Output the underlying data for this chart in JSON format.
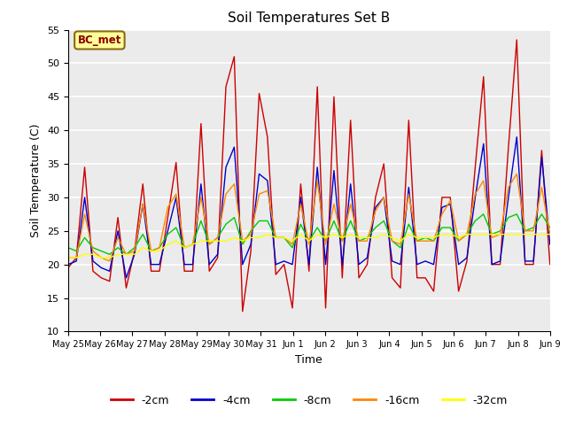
{
  "title": "Soil Temperatures Set B",
  "xlabel": "Time",
  "ylabel": "Soil Temperature (C)",
  "ylim": [
    10,
    55
  ],
  "yticks": [
    10,
    15,
    20,
    25,
    30,
    35,
    40,
    45,
    50,
    55
  ],
  "annotation_text": "BC_met",
  "annotation_bg": "#FFFF99",
  "annotation_border": "#8B6914",
  "annotation_text_color": "#8B0000",
  "fig_bg": "#FFFFFF",
  "plot_bg": "#EBEBEB",
  "grid_color": "#FFFFFF",
  "colors": {
    "-2cm": "#CC0000",
    "-4cm": "#0000CC",
    "-8cm": "#00CC00",
    "-16cm": "#FF8800",
    "-32cm": "#FFFF00"
  },
  "linewidth": 1.0,
  "num_days": 16,
  "xtick_labels": [
    "May 25",
    "May 26",
    "May 27",
    "May 28",
    "May 29",
    "May 30",
    "May 31",
    "Jun 1",
    "Jun 2",
    "Jun 3",
    "Jun 4",
    "Jun 5",
    "Jun 6",
    "Jun 7",
    "Jun 8",
    "Jun 9"
  ],
  "depth_2cm": [
    19.5,
    21.0,
    34.5,
    19.0,
    18.0,
    17.5,
    27.0,
    16.5,
    22.0,
    32.0,
    19.0,
    19.0,
    27.0,
    35.2,
    19.0,
    19.0,
    41.0,
    19.0,
    21.0,
    46.5,
    51.0,
    13.0,
    22.0,
    45.5,
    39.0,
    18.5,
    20.0,
    13.5,
    32.0,
    19.0,
    46.5,
    13.5,
    45.0,
    18.0,
    41.5,
    18.0,
    20.0,
    30.0,
    35.0,
    18.0,
    16.5,
    41.5,
    18.0,
    18.0,
    16.0,
    30.0,
    30.0,
    16.0,
    20.5,
    34.5,
    48.0,
    20.0,
    20.0,
    37.5,
    53.5,
    20.0,
    20.0,
    37.0,
    20.0
  ],
  "depth_4cm": [
    20.0,
    20.5,
    30.0,
    20.5,
    19.5,
    19.0,
    25.0,
    18.0,
    21.5,
    29.0,
    20.0,
    20.0,
    25.0,
    30.0,
    20.0,
    20.0,
    32.0,
    20.0,
    21.5,
    34.5,
    37.5,
    20.0,
    23.0,
    33.5,
    32.5,
    20.0,
    20.5,
    20.0,
    30.0,
    20.0,
    34.5,
    20.0,
    34.0,
    20.0,
    32.0,
    20.0,
    21.0,
    28.5,
    30.0,
    20.5,
    20.0,
    31.5,
    20.0,
    20.5,
    20.0,
    28.5,
    29.0,
    20.0,
    21.0,
    30.0,
    38.0,
    20.0,
    20.5,
    30.0,
    39.0,
    20.5,
    20.5,
    36.0,
    23.0
  ],
  "depth_8cm": [
    22.5,
    22.0,
    24.0,
    22.5,
    22.0,
    21.5,
    22.5,
    21.5,
    22.5,
    24.5,
    22.0,
    22.5,
    24.5,
    25.5,
    22.5,
    23.0,
    26.5,
    23.0,
    24.0,
    26.0,
    27.0,
    23.0,
    25.0,
    26.5,
    26.5,
    24.0,
    24.0,
    22.5,
    26.0,
    23.5,
    25.5,
    23.5,
    26.5,
    23.5,
    26.5,
    23.5,
    24.0,
    25.5,
    26.5,
    23.5,
    22.5,
    26.0,
    23.5,
    24.0,
    23.5,
    25.5,
    25.5,
    23.5,
    24.5,
    26.5,
    27.5,
    24.5,
    25.0,
    27.0,
    27.5,
    25.0,
    25.5,
    27.5,
    25.5
  ],
  "depth_16cm": [
    21.0,
    21.0,
    27.5,
    22.0,
    21.0,
    20.5,
    24.0,
    21.5,
    22.0,
    29.0,
    22.0,
    22.5,
    28.5,
    30.5,
    22.5,
    23.0,
    30.0,
    23.0,
    24.0,
    30.5,
    32.0,
    23.5,
    24.5,
    30.5,
    31.0,
    24.0,
    24.0,
    23.0,
    29.0,
    23.0,
    32.5,
    23.0,
    29.0,
    23.5,
    29.0,
    23.5,
    23.5,
    28.0,
    30.0,
    23.5,
    23.0,
    30.5,
    23.5,
    23.5,
    23.5,
    27.5,
    29.5,
    23.5,
    24.5,
    30.5,
    32.5,
    24.0,
    24.5,
    31.5,
    33.5,
    25.0,
    25.0,
    31.5,
    24.5
  ],
  "depth_32cm": [
    21.0,
    21.0,
    21.5,
    21.5,
    21.0,
    21.0,
    21.5,
    21.5,
    21.5,
    22.5,
    22.0,
    22.0,
    23.0,
    23.5,
    22.5,
    23.0,
    23.5,
    23.5,
    23.5,
    23.5,
    24.0,
    23.5,
    24.0,
    24.0,
    24.5,
    24.0,
    24.0,
    23.5,
    24.5,
    23.5,
    24.5,
    24.0,
    24.5,
    24.0,
    24.5,
    24.0,
    24.0,
    24.0,
    24.5,
    24.0,
    23.5,
    24.5,
    24.0,
    24.0,
    24.0,
    24.5,
    24.5,
    24.0,
    24.5,
    24.5,
    24.5,
    24.5,
    24.5,
    24.5,
    24.5,
    24.5,
    24.5,
    24.5,
    24.5
  ]
}
